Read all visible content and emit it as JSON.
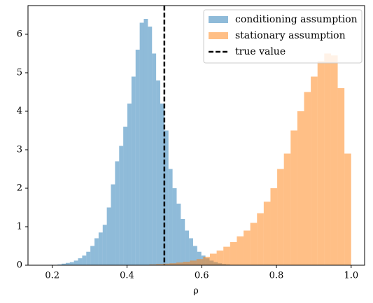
{
  "chart_data": {
    "type": "histogram",
    "xlabel": "ρ",
    "xlim": [
      0.135,
      1.036
    ],
    "ylim": [
      0,
      6.745
    ],
    "xticks": [
      0.2,
      0.4,
      0.6,
      0.8,
      {
        "value": 1,
        "label": "1.0"
      }
    ],
    "yticks": [
      0,
      1,
      2,
      3,
      4,
      5,
      6
    ],
    "grid": false,
    "legend": "upper right",
    "alpha": 0.5,
    "series": [
      {
        "name": "conditioning assumption",
        "color": "#1f77b4",
        "bins": [
          0.17,
          0.181,
          0.192,
          0.203,
          0.214,
          0.225,
          0.236,
          0.247,
          0.258,
          0.269,
          0.28,
          0.291,
          0.302,
          0.313,
          0.324,
          0.335,
          0.346,
          0.357,
          0.368,
          0.379,
          0.39,
          0.401,
          0.412,
          0.423,
          0.434,
          0.445,
          0.456,
          0.467,
          0.478,
          0.489,
          0.5,
          0.511,
          0.522,
          0.533,
          0.544,
          0.555,
          0.566,
          0.577,
          0.588,
          0.599,
          0.61,
          0.621,
          0.632,
          0.643,
          0.654,
          0.665,
          0.676,
          0.687,
          0.698,
          0.709,
          0.72
        ],
        "values": [
          0,
          0,
          0.01,
          0.01,
          0.02,
          0.04,
          0.06,
          0.08,
          0.12,
          0.18,
          0.25,
          0.35,
          0.5,
          0.7,
          0.85,
          1.05,
          1.5,
          2.1,
          2.7,
          3.1,
          3.6,
          4.2,
          4.9,
          5.6,
          6.3,
          6.4,
          6.2,
          5.5,
          4.8,
          4.2,
          3.5,
          2.5,
          2,
          1.6,
          1.2,
          0.9,
          0.7,
          0.5,
          0.35,
          0.25,
          0.18,
          0.12,
          0.08,
          0.05,
          0.03,
          0.02,
          0.01,
          0.01,
          0,
          0
        ]
      },
      {
        "name": "stationary assumption",
        "color": "#ff7f0e",
        "bins": [
          0.46,
          0.478,
          0.496,
          0.514,
          0.532,
          0.55,
          0.568,
          0.586,
          0.604,
          0.622,
          0.64,
          0.658,
          0.676,
          0.694,
          0.712,
          0.73,
          0.748,
          0.766,
          0.784,
          0.802,
          0.82,
          0.838,
          0.856,
          0.874,
          0.892,
          0.91,
          0.928,
          0.946,
          0.964,
          0.982,
          1.0
        ],
        "values": [
          0.02,
          0.03,
          0.04,
          0.05,
          0.07,
          0.09,
          0.12,
          0.16,
          0.22,
          0.3,
          0.38,
          0.48,
          0.6,
          0.75,
          0.9,
          1.1,
          1.35,
          1.65,
          2,
          2.5,
          2.9,
          3.5,
          4,
          4.5,
          4.9,
          5.3,
          5.5,
          5.45,
          4.6,
          2.9
        ]
      }
    ],
    "vline": {
      "name": "true value",
      "x": 0.5,
      "color": "#000000",
      "style": "dashed"
    }
  }
}
